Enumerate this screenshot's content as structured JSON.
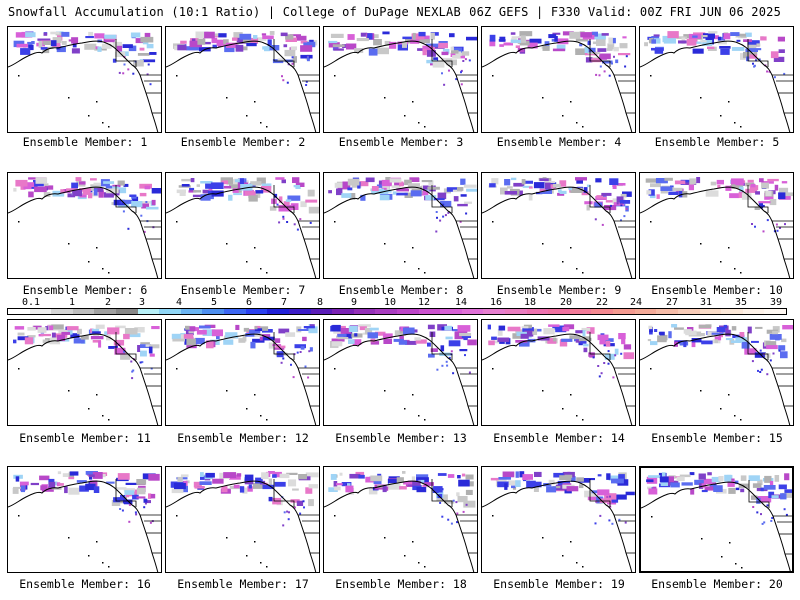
{
  "header": {
    "title_left": "Snowfall Accumulation (10:1 Ratio) | College of DuPage NEXLAB",
    "title_right": "06Z GEFS | F330 Valid: 00Z FRI JUN 06 2025"
  },
  "colorbar": {
    "labels": [
      "0.1",
      "1",
      "2",
      "3",
      "4",
      "5",
      "6",
      "7",
      "8",
      "9",
      "10",
      "12",
      "14",
      "16",
      "18",
      "20",
      "22",
      "24",
      "27",
      "31",
      "35",
      "39"
    ],
    "colors": [
      "#ffffff",
      "#eeeeee",
      "#d4d4d4",
      "#bdbdbd",
      "#a0a0a0",
      "#888888",
      "#b7f0f8",
      "#8fd6f6",
      "#6ab4f2",
      "#4d8ff0",
      "#3c66f2",
      "#2a40f0",
      "#2020d8",
      "#3c1cc8",
      "#5a1cb8",
      "#7a22b4",
      "#9430b8",
      "#a83cc0",
      "#bc44c8",
      "#cc52d0",
      "#d860d8",
      "#e070d8",
      "#e67ed0",
      "#ea7cc0",
      "#ee72b0",
      "#f070a0",
      "#f27a98",
      "#f48890",
      "#f49a90",
      "#f4aa98",
      "#f6bca8",
      "#f8ccb8",
      "#fadcc8",
      "#fce8d8",
      "#fef2e8",
      "#fff8f2"
    ]
  },
  "members": [
    {
      "label": "Ensemble Member: 1"
    },
    {
      "label": "Ensemble Member: 2"
    },
    {
      "label": "Ensemble Member: 3"
    },
    {
      "label": "Ensemble Member: 4"
    },
    {
      "label": "Ensemble Member: 5"
    },
    {
      "label": "Ensemble Member: 6"
    },
    {
      "label": "Ensemble Member: 7"
    },
    {
      "label": "Ensemble Member: 8"
    },
    {
      "label": "Ensemble Member: 9"
    },
    {
      "label": "Ensemble Member: 10"
    },
    {
      "label": "Ensemble Member: 11"
    },
    {
      "label": "Ensemble Member: 12"
    },
    {
      "label": "Ensemble Member: 13"
    },
    {
      "label": "Ensemble Member: 14"
    },
    {
      "label": "Ensemble Member: 15"
    },
    {
      "label": "Ensemble Member: 16"
    },
    {
      "label": "Ensemble Member: 17"
    },
    {
      "label": "Ensemble Member: 18"
    },
    {
      "label": "Ensemble Member: 19"
    },
    {
      "label": "Ensemble Member: 20"
    }
  ]
}
